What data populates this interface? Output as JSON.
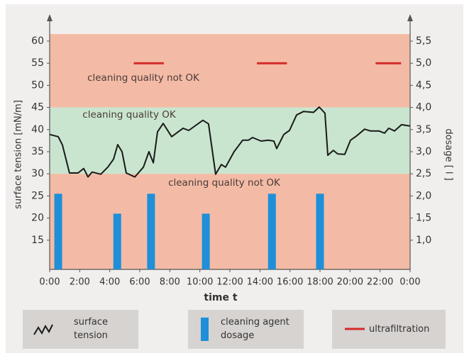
{
  "chart_data": {
    "type": "line",
    "xlabel": "time t",
    "ylabel": "surface tension [mN/m]",
    "y2label": "dosage [ l ]",
    "xlim": [
      0,
      24
    ],
    "xticks": [
      {
        "value": 0,
        "label": "0:00"
      },
      {
        "value": 2,
        "label": "2:00"
      },
      {
        "value": 4,
        "label": "4:00"
      },
      {
        "value": 6,
        "label": "6:00"
      },
      {
        "value": 8,
        "label": "8:00"
      },
      {
        "value": 10,
        "label": "10:00"
      },
      {
        "value": 12,
        "label": "12:00"
      },
      {
        "value": 14,
        "label": "14:00"
      },
      {
        "value": 16,
        "label": "16:00"
      },
      {
        "value": 18,
        "label": "18:00"
      },
      {
        "value": 20,
        "label": "20:00"
      },
      {
        "value": 22,
        "label": "22:00"
      },
      {
        "value": 24,
        "label": "0:00"
      }
    ],
    "ylim": [
      8.4,
      61.6
    ],
    "yticks": [
      15,
      20,
      25,
      30,
      35,
      40,
      45,
      50,
      55,
      60
    ],
    "y2lim": [
      0.34,
      5.66
    ],
    "y2ticks": [
      {
        "value": 1.0,
        "label": "1,0"
      },
      {
        "value": 1.5,
        "label": "1,5"
      },
      {
        "value": 2.0,
        "label": "2,0"
      },
      {
        "value": 2.5,
        "label": "2,5"
      },
      {
        "value": 3.0,
        "label": "3,0"
      },
      {
        "value": 3.5,
        "label": "3,5"
      },
      {
        "value": 4.0,
        "label": "4,0"
      },
      {
        "value": 4.5,
        "label": "4,5"
      },
      {
        "value": 5.0,
        "label": "5,0"
      },
      {
        "value": 5.5,
        "label": "5,5"
      }
    ],
    "bands": [
      {
        "from": 45,
        "to": 61.6,
        "color": "#f3bba5",
        "label": "cleaning quality not OK"
      },
      {
        "from": 30,
        "to": 45,
        "color": "#c9e5cf",
        "label": "cleaning quality OK"
      },
      {
        "from": 8.4,
        "to": 30,
        "color": "#f3bba5",
        "label": "cleaning quality not OK"
      }
    ],
    "series": [
      {
        "name": "surface tension",
        "kind": "line",
        "color": "#1a1a1a",
        "x": [
          0,
          0.57,
          0.85,
          1.32,
          1.89,
          2.27,
          2.55,
          2.83,
          3.4,
          3.87,
          4.25,
          4.53,
          4.82,
          5.1,
          5.67,
          6.24,
          6.61,
          6.9,
          7.18,
          7.56,
          8.12,
          8.88,
          9.26,
          10.2,
          10.58,
          11.05,
          11.43,
          11.71,
          12.28,
          12.85,
          13.23,
          13.51,
          14.08,
          14.55,
          14.93,
          15.12,
          15.59,
          15.97,
          16.44,
          16.91,
          17.57,
          17.95,
          18.33,
          18.52,
          18.89,
          19.18,
          19.65,
          20.03,
          20.41,
          20.97,
          21.35,
          21.92,
          22.3,
          22.58,
          22.96,
          23.43,
          24
        ],
        "values": [
          38.9,
          38.4,
          36.5,
          30.2,
          30.2,
          31.2,
          29.3,
          30.4,
          29.9,
          31.5,
          33.3,
          36.6,
          35,
          30.2,
          29.3,
          31.5,
          35,
          32.5,
          39.5,
          41.4,
          38.4,
          40.3,
          39.8,
          42.1,
          41.3,
          29.9,
          32.1,
          31.5,
          35,
          37.6,
          37.6,
          38.2,
          37.4,
          37.6,
          37.4,
          35.7,
          38.9,
          39.8,
          43.3,
          44.1,
          43.9,
          45.1,
          43.7,
          34.2,
          35.3,
          34.5,
          34.4,
          37.6,
          38.5,
          40.1,
          39.7,
          39.7,
          39.2,
          40.3,
          39.7,
          41.1,
          40.8
        ]
      },
      {
        "name": "cleaning agent dosage",
        "kind": "bar",
        "axis": "y2",
        "color": "#1e8fd8",
        "x": [
          0.57,
          4.5,
          6.75,
          10.4,
          14.8,
          18.0
        ],
        "values": [
          2.05,
          1.6,
          2.05,
          1.6,
          2.05,
          2.05
        ]
      },
      {
        "name": "ultrafiltration",
        "kind": "segment",
        "axis": "y2",
        "color": "#d42a2a",
        "x_start": [
          5.6,
          13.8,
          21.7
        ],
        "x_end": [
          7.6,
          15.8,
          23.4
        ],
        "values": [
          5.0,
          5.0,
          5.0
        ]
      }
    ]
  }
}
